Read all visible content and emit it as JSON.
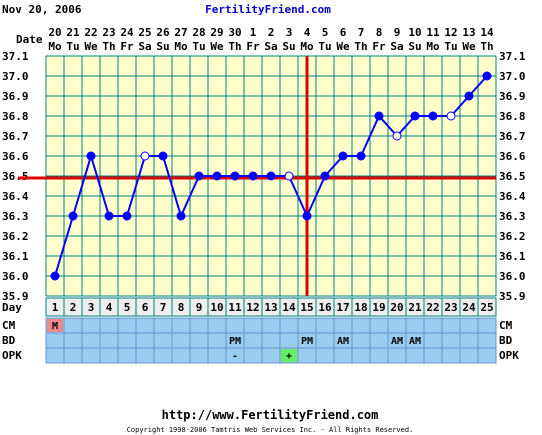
{
  "header": {
    "date": "Nov 20, 2006",
    "site": "FertilityFriend.com"
  },
  "footer": {
    "url": "http://www.FertilityFriend.com",
    "copyright": "Copyright 1998-2006 Tamtris Web Services Inc. - All Rights Reserved."
  },
  "labels": {
    "date_row": "Date",
    "day_row": "Day",
    "cm_row": "CM",
    "bd_row": "BD",
    "opk_row": "OPK"
  },
  "chart_data": {
    "type": "line",
    "title": "",
    "xlabel": "Day",
    "ylabel": "",
    "ylim": [
      35.9,
      37.1
    ],
    "y_ticks": [
      "37.1",
      "37.0",
      "36.9",
      "36.8",
      "36.7",
      "36.6",
      "36.5",
      "36.4",
      "36.3",
      "36.2",
      "36.1",
      "36.0",
      "35.9"
    ],
    "dates": [
      "20",
      "21",
      "22",
      "23",
      "24",
      "25",
      "26",
      "27",
      "28",
      "29",
      "30",
      "1",
      "2",
      "3",
      "4",
      "5",
      "6",
      "7",
      "8",
      "9",
      "10",
      "11",
      "12",
      "13",
      "14"
    ],
    "weekdays": [
      "Mo",
      "Tu",
      "We",
      "Th",
      "Fr",
      "Sa",
      "Su",
      "Mo",
      "Tu",
      "We",
      "Th",
      "Fr",
      "Sa",
      "Su",
      "Mo",
      "Tu",
      "We",
      "Th",
      "Fr",
      "Sa",
      "Su",
      "Mo",
      "Tu",
      "We",
      "Th"
    ],
    "days": [
      "1",
      "2",
      "3",
      "4",
      "5",
      "6",
      "7",
      "8",
      "9",
      "10",
      "11",
      "12",
      "13",
      "14",
      "15",
      "16",
      "17",
      "18",
      "19",
      "20",
      "21",
      "22",
      "23",
      "24",
      "25"
    ],
    "series": [
      {
        "values": [
          36.0,
          36.3,
          36.6,
          36.3,
          36.3,
          36.6,
          36.6,
          36.3,
          36.5,
          36.5,
          36.5,
          36.5,
          36.5,
          36.5,
          36.3,
          36.5,
          36.6,
          36.6,
          36.8,
          36.7,
          36.8,
          36.8,
          36.8,
          36.9,
          37.0
        ],
        "open_points": [
          6,
          14,
          20,
          23
        ],
        "color": "#0000ff"
      }
    ],
    "coverline": 36.49,
    "ovulation_day": 15,
    "grid": true,
    "colors": {
      "plot_background": "#ffffcc",
      "grid": "#008080",
      "line": "#0000ff",
      "coverline": "#dd0000",
      "day_row": "#eeeeee",
      "rows": "#99ccee",
      "cm_menstrual": "#ee8888",
      "opk_positive": "#66ee66"
    },
    "cm": [
      {
        "day": 1,
        "value": "M"
      }
    ],
    "bd": [
      {
        "day": 11,
        "value": "PM"
      },
      {
        "day": 15,
        "value": "PM"
      },
      {
        "day": 17,
        "value": "AM"
      },
      {
        "day": 20,
        "value": "AM"
      },
      {
        "day": 21,
        "value": "AM"
      }
    ],
    "opk": [
      {
        "day": 11,
        "value": "-"
      },
      {
        "day": 14,
        "value": "+"
      }
    ]
  }
}
